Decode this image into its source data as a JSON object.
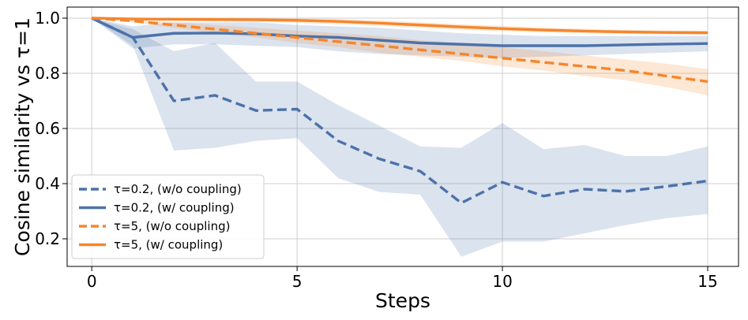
{
  "chart_data": {
    "type": "line",
    "title": "",
    "xlabel": "Steps",
    "ylabel": "Cosine similarity vs τ=1",
    "xlim": [
      -0.6,
      15.75
    ],
    "ylim": [
      0.1,
      1.04
    ],
    "xticks": [
      0,
      5,
      10,
      15
    ],
    "yticks": [
      0.2,
      0.4,
      0.6,
      0.8,
      1.0
    ],
    "xtick_labels": [
      "0",
      "5",
      "10",
      "15"
    ],
    "ytick_labels": [
      "0.2",
      "0.4",
      "0.6",
      "0.8",
      "1.0"
    ],
    "grid": true,
    "legend_position": "lower-left",
    "x": [
      0,
      1,
      2,
      3,
      4,
      5,
      6,
      7,
      8,
      9,
      10,
      11,
      12,
      13,
      14,
      15
    ],
    "series": [
      {
        "name": "τ=0.2, (w/o coupling)",
        "color": "#4c72a9",
        "dash": "dashed",
        "values": [
          1.0,
          0.93,
          0.7,
          0.72,
          0.665,
          0.67,
          0.555,
          0.49,
          0.445,
          0.33,
          0.405,
          0.355,
          0.38,
          0.372,
          0.39,
          0.41
        ],
        "band_low": [
          1.0,
          0.9,
          0.52,
          0.53,
          0.555,
          0.565,
          0.42,
          0.37,
          0.36,
          0.135,
          0.19,
          0.19,
          0.22,
          0.25,
          0.275,
          0.29
        ],
        "band_high": [
          1.0,
          0.96,
          0.88,
          0.91,
          0.77,
          0.77,
          0.685,
          0.61,
          0.535,
          0.53,
          0.62,
          0.525,
          0.54,
          0.5,
          0.5,
          0.535
        ]
      },
      {
        "name": "τ=0.2, (w/ coupling)",
        "color": "#4c72a9",
        "dash": "solid",
        "values": [
          1.0,
          0.93,
          0.945,
          0.946,
          0.943,
          0.935,
          0.93,
          0.92,
          0.91,
          0.905,
          0.9,
          0.9,
          0.9,
          0.903,
          0.906,
          0.908
        ],
        "band_low": [
          1.0,
          0.89,
          0.905,
          0.905,
          0.9,
          0.895,
          0.88,
          0.87,
          0.865,
          0.86,
          0.855,
          0.86,
          0.865,
          0.87,
          0.875,
          0.88
        ],
        "band_high": [
          1.0,
          0.97,
          0.985,
          0.985,
          0.985,
          0.975,
          0.97,
          0.965,
          0.955,
          0.945,
          0.94,
          0.935,
          0.935,
          0.935,
          0.935,
          0.935
        ]
      },
      {
        "name": "τ=5, (w/o coupling)",
        "color": "#f5862c",
        "dash": "dashed",
        "values": [
          1.0,
          0.99,
          0.975,
          0.96,
          0.945,
          0.93,
          0.915,
          0.9,
          0.885,
          0.87,
          0.855,
          0.84,
          0.825,
          0.81,
          0.79,
          0.77
        ],
        "band_low": [
          1.0,
          0.985,
          0.965,
          0.945,
          0.93,
          0.91,
          0.895,
          0.875,
          0.86,
          0.845,
          0.825,
          0.81,
          0.79,
          0.775,
          0.75,
          0.72
        ],
        "band_high": [
          1.0,
          0.995,
          0.985,
          0.975,
          0.965,
          0.955,
          0.945,
          0.935,
          0.92,
          0.91,
          0.895,
          0.88,
          0.865,
          0.85,
          0.835,
          0.815
        ]
      },
      {
        "name": "τ=5, (w/ coupling)",
        "color": "#f5862c",
        "dash": "solid",
        "values": [
          1.0,
          0.997,
          0.996,
          0.995,
          0.994,
          0.992,
          0.988,
          0.982,
          0.975,
          0.968,
          0.962,
          0.957,
          0.953,
          0.95,
          0.948,
          0.947
        ],
        "band_low": [
          1.0,
          0.993,
          0.99,
          0.988,
          0.986,
          0.983,
          0.978,
          0.972,
          0.965,
          0.958,
          0.953,
          0.948,
          0.945,
          0.943,
          0.941,
          0.94
        ],
        "band_high": [
          1.0,
          1.0,
          1.0,
          1.0,
          1.0,
          1.0,
          0.997,
          0.992,
          0.985,
          0.978,
          0.972,
          0.966,
          0.961,
          0.957,
          0.955,
          0.954
        ]
      }
    ]
  }
}
